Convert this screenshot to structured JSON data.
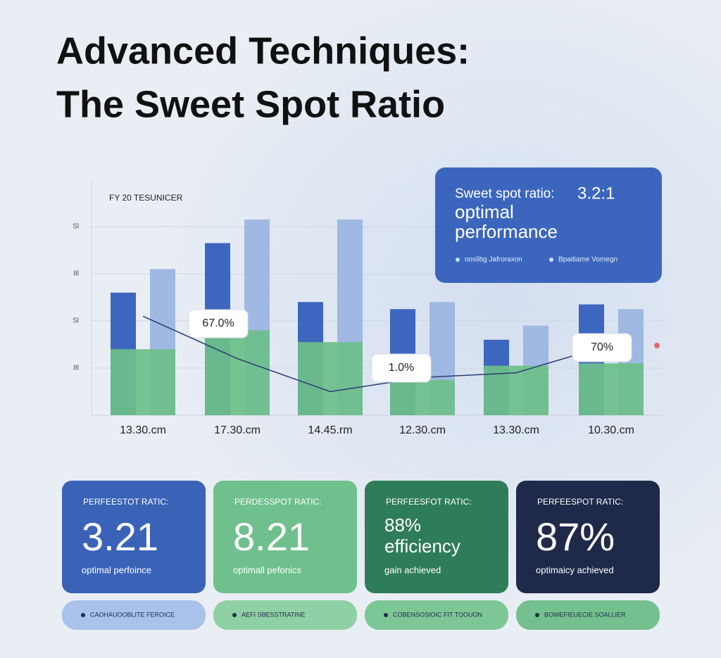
{
  "header": {
    "title_line1": "Advanced Techniques:",
    "title_line2": "The Sweet Spot Ratio"
  },
  "chart_data": {
    "type": "bar",
    "subtitle": "FY 20 TESUNICER",
    "categories": [
      "13.30.cm",
      "17.30.cm",
      "14.45.rm",
      "12.30.cm",
      "13.30.cm",
      "10.30.cm"
    ],
    "series": [
      {
        "color": "#3d66bf",
        "values": [
          52,
          73,
          48,
          45,
          32,
          47
        ]
      },
      {
        "color": "#9fb9e2",
        "values": [
          62,
          83,
          83,
          48,
          38,
          45
        ]
      },
      {
        "color": "#6dbf8a",
        "values": [
          28,
          36,
          31,
          15,
          21,
          22
        ]
      }
    ],
    "line": {
      "color": "#2c3f73",
      "values": [
        42,
        24,
        10,
        16,
        18,
        30
      ]
    },
    "annotations": [
      "67.0%",
      "1.0%",
      "70%"
    ],
    "ylim": [
      0,
      100
    ],
    "yticks": [
      {
        "value": 20,
        "label": "8l"
      },
      {
        "value": 40,
        "label": "Sl"
      },
      {
        "value": 60,
        "label": "8l"
      },
      {
        "value": 80,
        "label": "Sl"
      }
    ],
    "grid": true
  },
  "info_box": {
    "label": "Sweet spot ratio:",
    "ratio": "3.2:1",
    "line1": "optimal",
    "line2": "performance",
    "legend1": "ooslibg Jafroraxon",
    "legend2": "Bpaitiame Vomegn"
  },
  "cards": [
    {
      "label": "PERFEESTOT RATIC:",
      "value": "3.21",
      "note": "optimal perfoince",
      "pill": "CAOHAUOOBLITE FEROICE"
    },
    {
      "label": "PERDESSPOT RATIC:",
      "value": "8.21",
      "note": "optimall pefonics",
      "pill": "AEFI SBESSTRATINE"
    },
    {
      "label": "PERFEESFOT RATIC:",
      "value": "88%",
      "value_line2": "efficiency",
      "note": "gain achieved",
      "pill": "COBENSOSIOIC FIT TOOUON"
    },
    {
      "label": "PERFEESPOT RATIC:",
      "value": "87%",
      "note": "optimaicy achieved",
      "pill": "BOWEFIEUECIE SOALLIER"
    }
  ]
}
